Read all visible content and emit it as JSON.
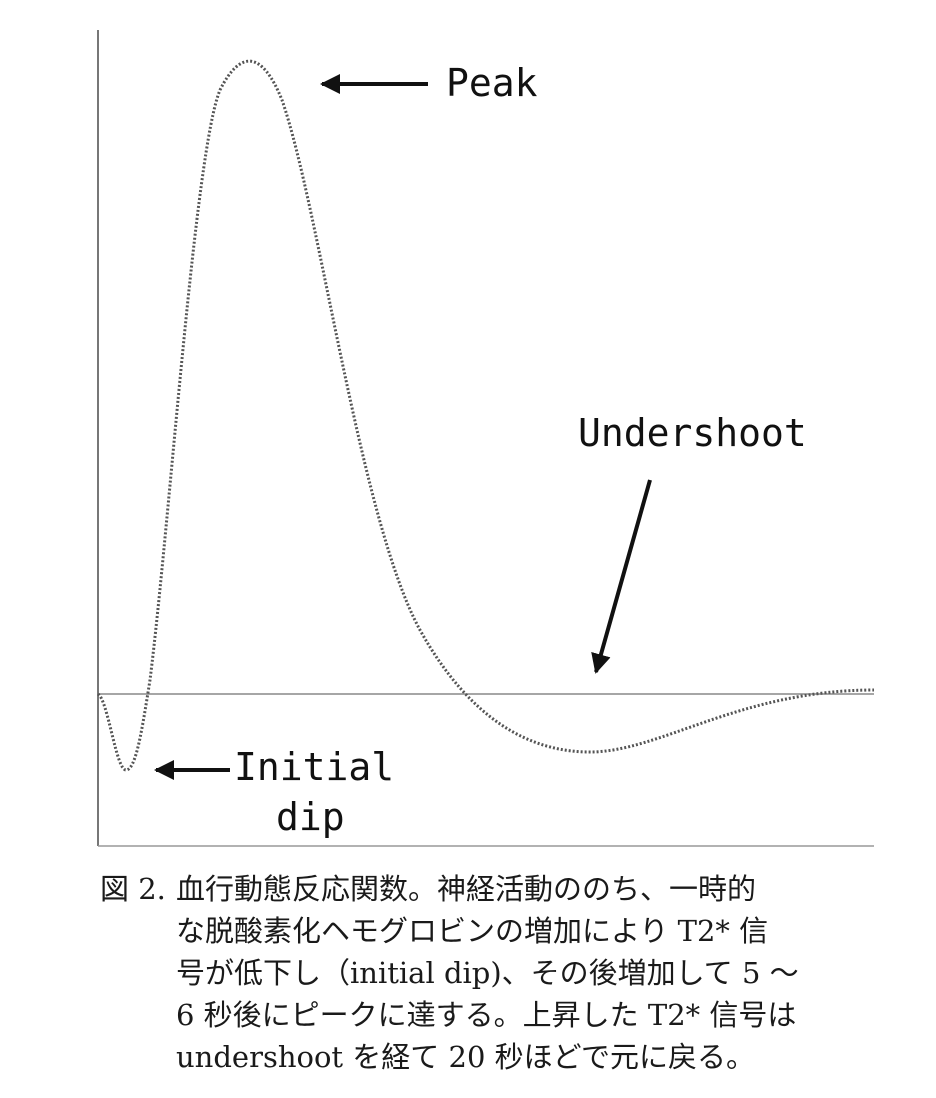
{
  "diagram": {
    "labels": {
      "peak": "Peak",
      "undershoot": "Undershoot",
      "initial_dip_line1": "Initial",
      "initial_dip_line2": "dip"
    },
    "curve": {
      "description_points": [
        [
          0,
          0
        ],
        [
          0.5,
          -0.05
        ],
        [
          1,
          -0.12
        ],
        [
          1.5,
          0.2
        ],
        [
          3,
          0.7
        ],
        [
          5.5,
          1.0
        ],
        [
          9,
          0.55
        ],
        [
          13,
          0.1
        ],
        [
          16,
          -0.06
        ],
        [
          20,
          -0.09
        ],
        [
          26,
          -0.05
        ],
        [
          33,
          0.0
        ]
      ]
    },
    "colors": {
      "axis": "#777777",
      "curve": "#555555",
      "baseline": "#888888",
      "arrow": "#111111"
    }
  },
  "caption": {
    "figure_label": "図 2.",
    "lines": [
      "血行動態反応関数。神経活動ののち、一時的",
      "な脱酸素化ヘモグロビンの増加により T2* 信",
      "号が低下し（initial dip)、その後増加して 5 〜",
      "6 秒後にピークに達する。上昇した T2* 信号は",
      "undershoot を経て 20 秒ほどで元に戻る。"
    ]
  }
}
